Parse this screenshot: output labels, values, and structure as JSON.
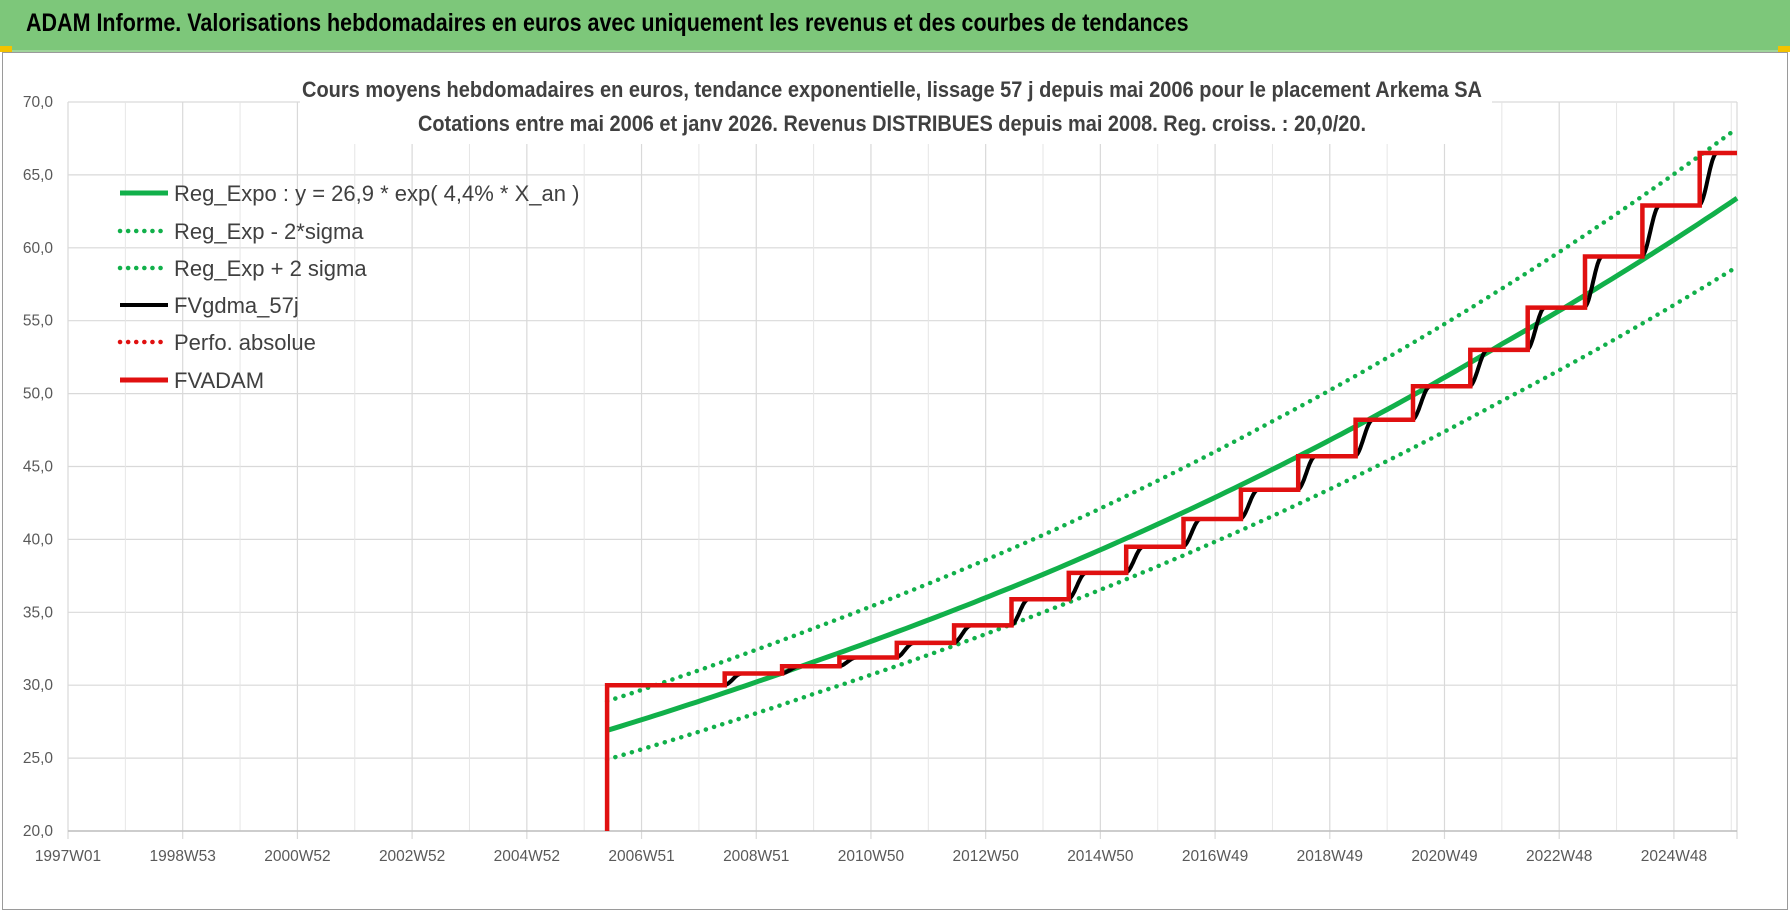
{
  "banner": {
    "title": "ADAM Informe. Valorisations hebdomadaires en euros avec uniquement les revenus et des courbes de tendances"
  },
  "colors": {
    "banner": "#7dc77a",
    "green": "#11b04a",
    "black": "#000000",
    "red": "#e01010",
    "grid": "#d9d9d9"
  },
  "chart_data": {
    "type": "line",
    "title": "Cours moyens hebdomadaires en euros, tendance exponentielle, lissage 57 j depuis mai 2006 pour le placement Arkema SA",
    "subtitle": "Cotations entre mai 2006 et janv 2026. Revenus DISTRIBUES depuis mai 2008. Reg. croiss. : 20,0/20.",
    "xlabel": "",
    "ylabel": "",
    "x_range": [
      1997.0,
      2026.1
    ],
    "ylim": [
      20,
      70
    ],
    "yticks": [
      "20,0",
      "25,0",
      "30,0",
      "35,0",
      "40,0",
      "45,0",
      "50,0",
      "55,0",
      "60,0",
      "65,0",
      "70,0"
    ],
    "xticks": [
      "1997W01",
      "1998W53",
      "2000W52",
      "2002W52",
      "2004W52",
      "2006W51",
      "2008W51",
      "2010W50",
      "2012W50",
      "2014W50",
      "2016W49",
      "2018W49",
      "2020W49",
      "2022W48",
      "2024W48"
    ],
    "grid": true,
    "legend_position": "top-left",
    "series": [
      {
        "name": "Reg_Expo : y = 26,9 * exp( 4,4% *  X_an )",
        "style": "solid-thick",
        "color": "#11b04a",
        "x": [
          2006.4,
          2010.0,
          2014.0,
          2018.0,
          2022.0,
          2026.1
        ],
        "y": [
          26.9,
          31.6,
          37.6,
          44.8,
          53.4,
          63.4
        ]
      },
      {
        "name": "Reg_Exp - 2*sigma",
        "style": "dotted",
        "color": "#11b04a",
        "x": [
          2006.4,
          2010.0,
          2014.0,
          2018.0,
          2022.0,
          2026.1
        ],
        "y": [
          24.9,
          29.4,
          35.0,
          41.6,
          49.5,
          58.7
        ]
      },
      {
        "name": "Reg_Exp + 2 sigma",
        "style": "dotted",
        "color": "#11b04a",
        "x": [
          2006.4,
          2010.0,
          2014.0,
          2018.0,
          2022.0,
          2026.1
        ],
        "y": [
          28.9,
          33.9,
          40.3,
          48.1,
          57.2,
          68.2
        ]
      },
      {
        "name": "FVgdma_57j",
        "style": "solid",
        "color": "#000000",
        "x": [
          2006.4,
          2007.45,
          2008.45,
          2009.45,
          2010.45,
          2011.45,
          2012.45,
          2013.45,
          2014.45,
          2015.45,
          2016.45,
          2017.45,
          2018.45,
          2019.45,
          2020.45,
          2021.45,
          2022.45,
          2023.45,
          2024.45,
          2025.45,
          2026.1
        ],
        "y": [
          30.0,
          30.0,
          30.8,
          31.3,
          31.9,
          32.9,
          34.1,
          35.9,
          37.7,
          39.5,
          41.4,
          43.4,
          45.7,
          48.2,
          50.5,
          53.0,
          55.9,
          59.4,
          62.9,
          66.5,
          66.5
        ]
      },
      {
        "name": "Perfo. absolue",
        "style": "dotted",
        "color": "#e01010",
        "x": [],
        "y": []
      },
      {
        "name": "FVADAM",
        "style": "step-thick",
        "color": "#e01010",
        "x": [
          2006.4,
          2006.4,
          2007.45,
          2008.45,
          2009.45,
          2010.45,
          2011.45,
          2012.45,
          2013.45,
          2014.45,
          2015.45,
          2016.45,
          2017.45,
          2018.45,
          2019.45,
          2020.45,
          2021.45,
          2022.45,
          2023.45,
          2024.45,
          2025.45,
          2026.1
        ],
        "y": [
          20.0,
          30.0,
          30.0,
          30.8,
          31.3,
          31.9,
          32.9,
          34.1,
          35.9,
          37.7,
          39.5,
          41.4,
          43.4,
          45.7,
          48.2,
          50.5,
          53.0,
          55.9,
          59.4,
          62.9,
          66.5,
          66.5
        ]
      }
    ]
  }
}
